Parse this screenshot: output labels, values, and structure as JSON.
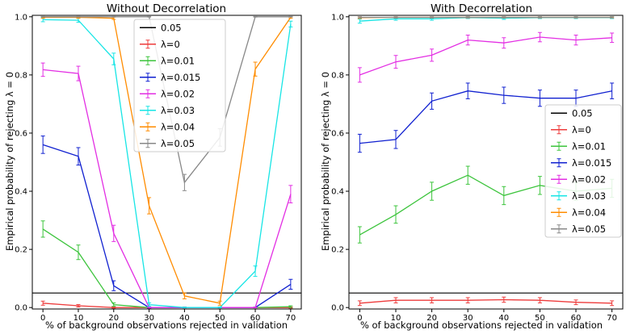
{
  "chart_data": [
    {
      "type": "line",
      "title": "Without Decorrelation",
      "xlabel": "% of background observations rejected in validation",
      "ylabel": "Empirical probability of rejecting λ = 0",
      "x": [
        0,
        10,
        20,
        30,
        40,
        50,
        60,
        70
      ],
      "xlim": [
        -3,
        73
      ],
      "ylim": [
        -0.005,
        1.005
      ],
      "xticks": [
        "0",
        "10",
        "20",
        "30",
        "40",
        "50",
        "60",
        "70"
      ],
      "yticks": [
        "0.0",
        "0.2",
        "0.4",
        "0.6",
        "0.8",
        "1.0"
      ],
      "hline": {
        "name": "0.05",
        "value": 0.05,
        "color": "#000000"
      },
      "legend_position": "top-center",
      "series": [
        {
          "name": "λ=0",
          "color": "#ee3b3b",
          "values": [
            0.015,
            0.006,
            0.0,
            0.0,
            0.0,
            0.0,
            0.0,
            0.0
          ],
          "err": [
            0.007,
            0.004,
            0.002,
            0.001,
            0.001,
            0.001,
            0.001,
            0.002
          ]
        },
        {
          "name": "λ=0.01",
          "color": "#3cc43c",
          "values": [
            0.27,
            0.19,
            0.01,
            0.0,
            0.0,
            0.0,
            0.0,
            0.003
          ],
          "err": [
            0.028,
            0.025,
            0.006,
            0.002,
            0.001,
            0.001,
            0.001,
            0.003
          ]
        },
        {
          "name": "λ=0.015",
          "color": "#1020d0",
          "values": [
            0.56,
            0.52,
            0.075,
            0.0,
            0.0,
            0.0,
            0.0,
            0.08
          ],
          "err": [
            0.03,
            0.03,
            0.017,
            0.002,
            0.001,
            0.001,
            0.001,
            0.017
          ]
        },
        {
          "name": "λ=0.02",
          "color": "#e32ee3",
          "values": [
            0.818,
            0.805,
            0.255,
            0.0,
            0.0,
            0.0,
            0.0,
            0.39
          ],
          "err": [
            0.023,
            0.025,
            0.028,
            0.002,
            0.001,
            0.001,
            0.001,
            0.03
          ]
        },
        {
          "name": "λ=0.03",
          "color": "#17e5e5",
          "values": [
            0.99,
            0.988,
            0.855,
            0.01,
            0.0,
            0.0,
            0.125,
            0.975
          ],
          "err": [
            0.007,
            0.007,
            0.02,
            0.006,
            0.001,
            0.001,
            0.018,
            0.01
          ]
        },
        {
          "name": "λ=0.04",
          "color": "#ff8c00",
          "values": [
            0.998,
            0.998,
            0.995,
            0.35,
            0.04,
            0.015,
            0.82,
            0.998
          ],
          "err": [
            0.003,
            0.003,
            0.004,
            0.028,
            0.01,
            0.007,
            0.024,
            0.003
          ]
        },
        {
          "name": "λ=0.05",
          "color": "#888888",
          "values": [
            1.0,
            1.0,
            1.0,
            1.0,
            0.43,
            0.585,
            1.0,
            1.0
          ],
          "err": [
            0.001,
            0.001,
            0.001,
            0.001,
            0.028,
            0.03,
            0.001,
            0.001
          ]
        }
      ]
    },
    {
      "type": "line",
      "title": "With Decorrelation",
      "xlabel": "% of background observations rejected in validation",
      "ylabel": "Empirical probability of rejecting λ = 0",
      "x": [
        0,
        10,
        20,
        30,
        40,
        50,
        60,
        70
      ],
      "xlim": [
        -3,
        73
      ],
      "ylim": [
        -0.005,
        1.005
      ],
      "xticks": [
        "0",
        "10",
        "20",
        "30",
        "40",
        "50",
        "60",
        "70"
      ],
      "yticks": [
        "0.0",
        "0.2",
        "0.4",
        "0.6",
        "0.8",
        "1.0"
      ],
      "hline": {
        "name": "0.05",
        "value": 0.05,
        "color": "#000000"
      },
      "legend_position": "center-right",
      "series": [
        {
          "name": "λ=0",
          "color": "#ee3b3b",
          "values": [
            0.015,
            0.025,
            0.025,
            0.025,
            0.027,
            0.025,
            0.018,
            0.015
          ],
          "err": [
            0.008,
            0.009,
            0.009,
            0.009,
            0.009,
            0.009,
            0.008,
            0.008
          ]
        },
        {
          "name": "λ=0.01",
          "color": "#3cc43c",
          "values": [
            0.25,
            0.32,
            0.4,
            0.455,
            0.385,
            0.42,
            0.4,
            0.41
          ],
          "err": [
            0.028,
            0.03,
            0.031,
            0.031,
            0.031,
            0.031,
            0.031,
            0.031
          ]
        },
        {
          "name": "λ=0.015",
          "color": "#1020d0",
          "values": [
            0.565,
            0.578,
            0.71,
            0.745,
            0.73,
            0.72,
            0.72,
            0.745
          ],
          "err": [
            0.031,
            0.031,
            0.028,
            0.027,
            0.028,
            0.028,
            0.028,
            0.027
          ]
        },
        {
          "name": "λ=0.02",
          "color": "#e32ee3",
          "values": [
            0.8,
            0.845,
            0.868,
            0.92,
            0.91,
            0.93,
            0.92,
            0.928
          ],
          "err": [
            0.025,
            0.022,
            0.021,
            0.017,
            0.018,
            0.016,
            0.017,
            0.016
          ]
        },
        {
          "name": "λ=0.03",
          "color": "#17e5e5",
          "values": [
            0.985,
            0.993,
            0.993,
            0.997,
            0.995,
            0.997,
            0.997,
            0.997
          ],
          "err": [
            0.007,
            0.005,
            0.005,
            0.003,
            0.004,
            0.003,
            0.003,
            0.003
          ]
        },
        {
          "name": "λ=0.04",
          "color": "#ff8c00",
          "values": [
            0.997,
            0.998,
            0.998,
            0.998,
            0.998,
            0.998,
            0.998,
            0.998
          ],
          "err": [
            0.003,
            0.002,
            0.002,
            0.002,
            0.002,
            0.002,
            0.002,
            0.002
          ]
        },
        {
          "name": "λ=0.05",
          "color": "#888888",
          "values": [
            0.998,
            0.998,
            0.998,
            0.998,
            0.998,
            0.998,
            0.998,
            0.998
          ],
          "err": [
            0.002,
            0.002,
            0.002,
            0.002,
            0.002,
            0.002,
            0.002,
            0.002
          ]
        }
      ]
    }
  ]
}
